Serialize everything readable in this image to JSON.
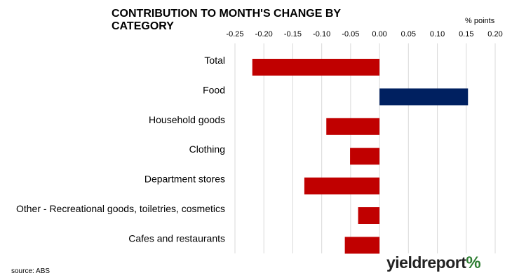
{
  "chart_data": {
    "type": "bar",
    "orientation": "horizontal",
    "title": "CONTRIBUTION TO MONTH'S CHANGE BY CATEGORY",
    "unit_label": "% points",
    "xlim": [
      -0.25,
      0.2
    ],
    "x_ticks": [
      "-0.25",
      "-0.20",
      "-0.15",
      "-0.10",
      "-0.05",
      "0.00",
      "0.05",
      "0.10",
      "0.15",
      "0.20"
    ],
    "x_tick_values": [
      -0.25,
      -0.2,
      -0.15,
      -0.1,
      -0.05,
      0.0,
      0.05,
      0.1,
      0.15,
      0.2
    ],
    "grid": "vertical",
    "categories": [
      "Total",
      "Food",
      "Household goods",
      "Clothing",
      "Department stores",
      "Other - Recreational goods, toiletries, cosmetics",
      "Cafes and restaurants"
    ],
    "values": [
      -0.22,
      0.153,
      -0.092,
      -0.051,
      -0.13,
      -0.037,
      -0.06
    ],
    "colors": {
      "negative": "#c00000",
      "positive": "#002060"
    }
  },
  "source": "source: ABS",
  "logo": {
    "text": "yieldreport",
    "symbol": "%"
  }
}
